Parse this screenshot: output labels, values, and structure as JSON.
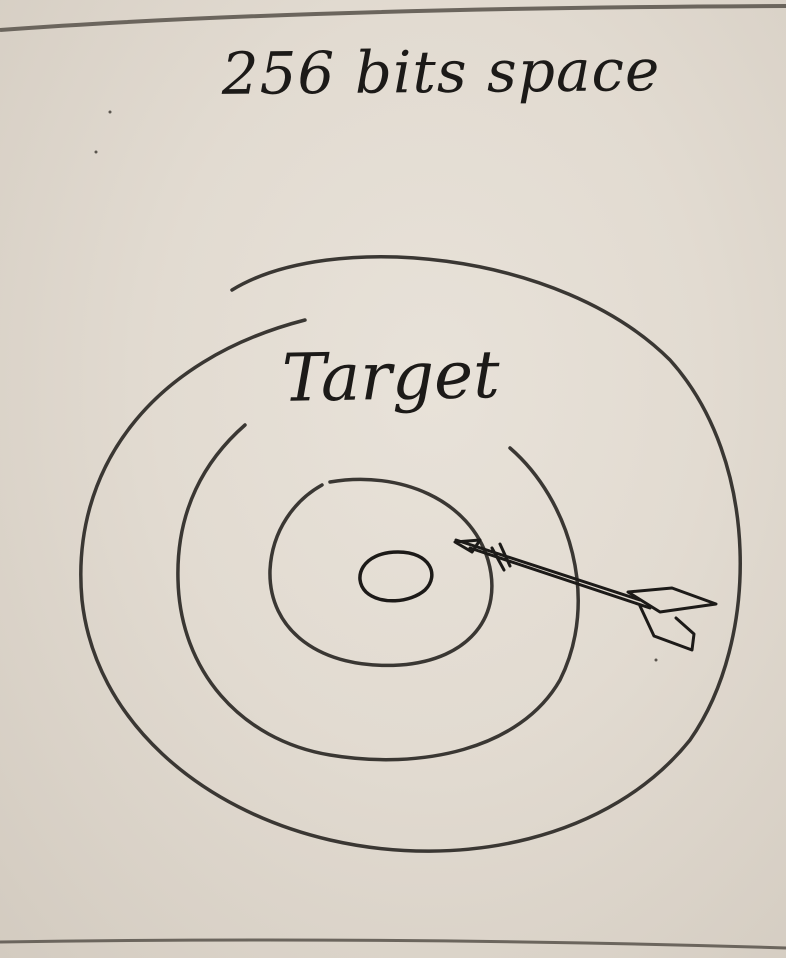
{
  "title": "256 bits space",
  "target_label": "Target",
  "colors": {
    "paper": "#e2dbd1",
    "ink": "#1c1a18",
    "pencil": "#3a3733"
  }
}
